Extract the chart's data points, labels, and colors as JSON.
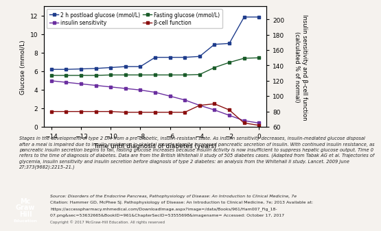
{
  "x": [
    -14,
    -13,
    -12,
    -11,
    -10,
    -9,
    -8,
    -7,
    -6,
    -5,
    -4,
    -3,
    -2,
    -1,
    0
  ],
  "postload_glucose": [
    6.2,
    6.2,
    6.25,
    6.3,
    6.4,
    6.5,
    6.5,
    7.5,
    7.5,
    7.5,
    7.6,
    8.9,
    9.0,
    11.85,
    11.85
  ],
  "fasting_glucose": [
    5.55,
    5.55,
    5.55,
    5.55,
    5.6,
    5.6,
    5.6,
    5.6,
    5.6,
    5.6,
    5.65,
    6.4,
    6.95,
    7.4,
    7.45
  ],
  "insulin_sensitivity": [
    120,
    118,
    116,
    114,
    112,
    110,
    108,
    105,
    100,
    95,
    88,
    82,
    75,
    68,
    65
  ],
  "beta_cell_function": [
    80,
    80,
    80,
    80,
    80,
    79,
    79,
    79,
    79,
    79,
    88,
    90,
    82,
    65,
    62
  ],
  "postload_color": "#1f3d8c",
  "fasting_color": "#1a5c2a",
  "insulin_color": "#6b2fa0",
  "beta_color": "#8b1010",
  "ylabel_left": "Glucose (mmol/L)",
  "ylabel_right": "Insulin sensitivity and β-cell function\n(calculated % of normal)",
  "xlabel": "Time until diagnosis of diabetes (years)",
  "ylim_left": [
    0,
    13
  ],
  "ylim_right": [
    60,
    217
  ],
  "yticks_left": [
    0,
    2,
    4,
    6,
    8,
    10,
    12
  ],
  "yticks_right": [
    60,
    80,
    100,
    120,
    140,
    160,
    180,
    200
  ],
  "xlim": [
    -14.5,
    0.5
  ],
  "xticks": [
    -14,
    -12,
    -10,
    -8,
    -6,
    -4,
    -2,
    0
  ],
  "legend_entries": [
    "2 h postload glucose (mmol/L)",
    "insulin sensitivity",
    "Fasting glucose (mmol/L)",
    "β-cell function"
  ],
  "marker": "s",
  "markersize": 3.5,
  "linewidth": 1.0,
  "plot_bg": "#ffffff",
  "fig_bg": "#f5f2ee",
  "caption": "Stages in the development of type 2 DM from a pre-diabetic, insulin-resistant state. As insulin sensitivity decreases, insulin-mediated glucose disposal\nafter a meal is impaired due to insulin resistance in skeletal muscle despite increased pancreatic secretion of insulin. With continued insulin resistance, as\npancreatic insulin secretion begins to fail, fasting glucose increases because insulin activity is now insufficient to suppress hepatic glucose output. Time 0\nrefers to the time of diagnosis of diabetes. Data are from the British Whitehall II study of 505 diabetes cases. (Adapted from Tabak AG et al. Trajectories of\nglycemia, insulin sensitivity and insulin secretion before diagnosis of type 2 diabetes: an analysis from the Whitehall II study. Lancet. 2009 June\n27;373(9682):2215–21.)",
  "source_line": "Source: Disorders of the Endocrine Pancreas, Pathophysiology of Disease: An Introduction to Clinical Medicine, 7e",
  "citation_line": "Citation: Hammer GD, McPhee SJ. Pathophysiology of Disease: An Introduction to Clinical Medicine, 7e; 2013 Available at:",
  "url_line": "https://accesspharmacy.mhmedical.com/DownloadImage.aspx?image=/data/Books/961/Ham007_Fig_18-",
  "url_line2": "07.png&sec=53632665&BookID=961&ChapterSecID=53555698&imagename= Accessed: October 17, 2017",
  "copyright_line": "Copyright © 2017 McGraw-Hill Education. All rights reserved"
}
